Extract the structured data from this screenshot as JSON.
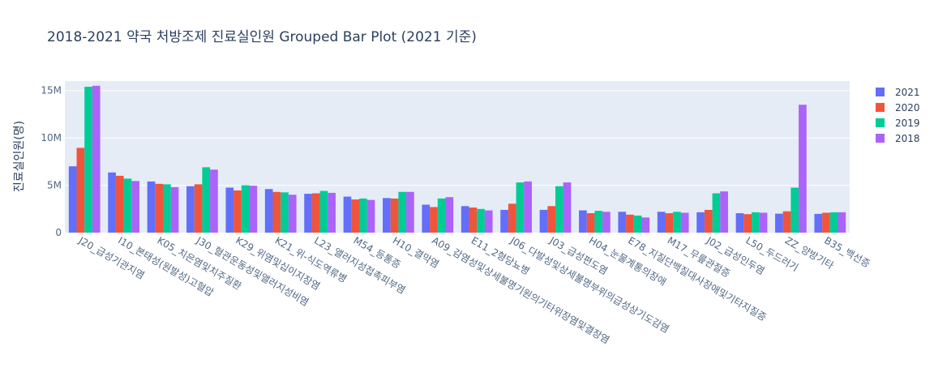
{
  "chart_data": {
    "type": "bar",
    "title": "2018-2021 약국 처방조제 진료실인원 Grouped Bar Plot (2021 기준)",
    "xlabel": "",
    "ylabel": "진료실인원(명)",
    "ylim": [
      0,
      16000000
    ],
    "yticks": [
      {
        "value": 0,
        "label": "0"
      },
      {
        "value": 5000000,
        "label": "5M"
      },
      {
        "value": 10000000,
        "label": "10M"
      },
      {
        "value": 15000000,
        "label": "15M"
      }
    ],
    "grid": "horizontal",
    "legend_position": "right",
    "categories": [
      "J20_급성기관지염",
      "I10_본태성(원발성)고혈압",
      "K05_치은염및치주질환",
      "J30_혈관운동성및앨러지성비염",
      "K29_위염및십이지장염",
      "K21_위-식도역류병",
      "L23_앨러지성접촉피부염",
      "M54_등통증",
      "H10_결막염",
      "A09_감염성및상세불명기원의기타위장염및결장염",
      "E11_2형당뇨병",
      "J06_다발성및상세불명부위의급성상기도감염",
      "J03_급성편도염",
      "H04_눈물계통의장애",
      "E78_지질단백질대사장애및기타지질증",
      "M17_무릎관절증",
      "J02_급성인두염",
      "L50_두드러기",
      "ZZ_양방기타",
      "B35_백선증"
    ],
    "series": [
      {
        "name": "2021",
        "color": "#636efa",
        "values": [
          7000000,
          6350000,
          5400000,
          4900000,
          4750000,
          4600000,
          4100000,
          3800000,
          3650000,
          2950000,
          2800000,
          2400000,
          2400000,
          2350000,
          2200000,
          2200000,
          2150000,
          2050000,
          2000000,
          1980000
        ]
      },
      {
        "name": "2020",
        "color": "#ef553b",
        "values": [
          8950000,
          6000000,
          5150000,
          5100000,
          4450000,
          4300000,
          4150000,
          3500000,
          3600000,
          2700000,
          2650000,
          3050000,
          2800000,
          2050000,
          1900000,
          2050000,
          2400000,
          1950000,
          2250000,
          2100000
        ]
      },
      {
        "name": "2019",
        "color": "#00cc96",
        "values": [
          15400000,
          5700000,
          5100000,
          6900000,
          5000000,
          4250000,
          4400000,
          3600000,
          4300000,
          3600000,
          2500000,
          5300000,
          4900000,
          2300000,
          1800000,
          2200000,
          4150000,
          2150000,
          4750000,
          2150000
        ]
      },
      {
        "name": "2018",
        "color": "#ab63fa",
        "values": [
          15500000,
          5450000,
          4800000,
          6650000,
          4950000,
          4000000,
          4200000,
          3450000,
          4300000,
          3750000,
          2350000,
          5400000,
          5300000,
          2200000,
          1600000,
          2100000,
          4350000,
          2100000,
          13500000,
          2150000
        ]
      }
    ]
  }
}
